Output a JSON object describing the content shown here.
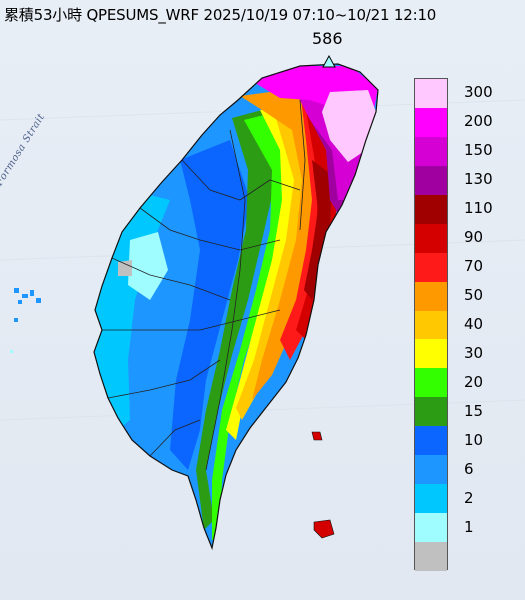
{
  "title": "累積53小時 QPESUMS_WRF 2025/10/19 07:10~10/21 12:10",
  "max_value": "586",
  "strait_label": "Formosa Strait",
  "legend": {
    "items": [
      {
        "label": "300",
        "color": "#ffc8ff"
      },
      {
        "label": "200",
        "color": "#ff00ff"
      },
      {
        "label": "150",
        "color": "#d400d4"
      },
      {
        "label": "130",
        "color": "#a000a0"
      },
      {
        "label": "110",
        "color": "#a00000"
      },
      {
        "label": "90",
        "color": "#d40000"
      },
      {
        "label": "70",
        "color": "#ff1a1a"
      },
      {
        "label": "50",
        "color": "#ff9900"
      },
      {
        "label": "40",
        "color": "#ffc800"
      },
      {
        "label": "30",
        "color": "#ffff00"
      },
      {
        "label": "20",
        "color": "#33ff00"
      },
      {
        "label": "15",
        "color": "#2c9c14"
      },
      {
        "label": "10",
        "color": "#0a66ff"
      },
      {
        "label": "6",
        "color": "#1e96ff"
      },
      {
        "label": "2",
        "color": "#00c8ff"
      },
      {
        "label": "1",
        "color": "#9ffdff"
      },
      {
        "label": "",
        "color": "#c0c0c0"
      }
    ]
  }
}
